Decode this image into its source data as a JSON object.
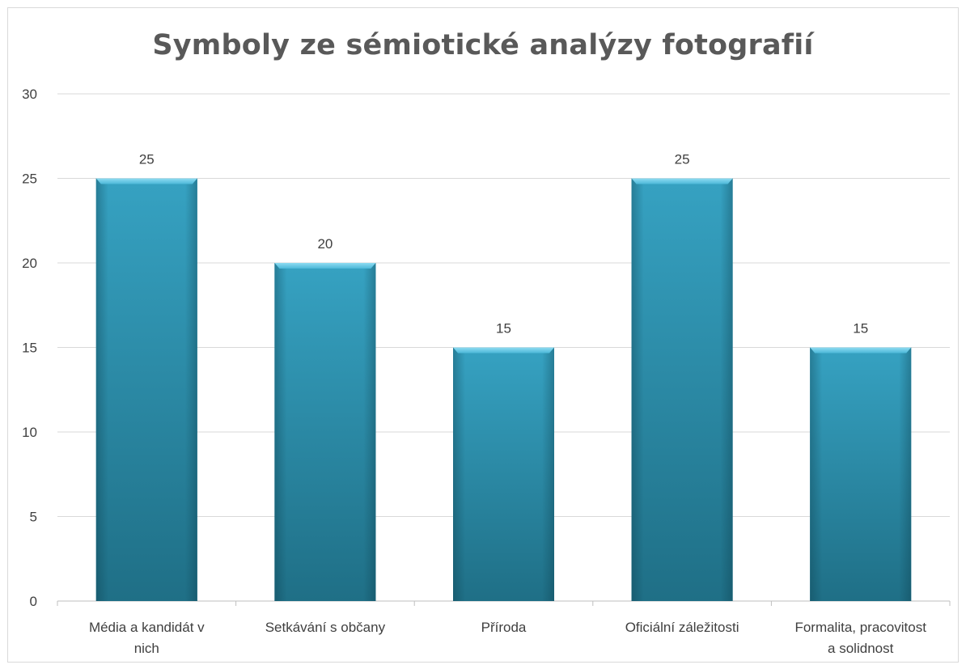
{
  "chart_data": {
    "type": "bar",
    "title": "Symboly ze sémiotické analýzy fotografií",
    "xlabel": "",
    "ylabel": "",
    "categories": [
      [
        "Média a kandidát v",
        "nich"
      ],
      [
        "Setkávání s občany"
      ],
      [
        "Příroda"
      ],
      [
        "Oficiální záležitosti"
      ],
      [
        "Formalita, pracovitost",
        "a solidnost"
      ]
    ],
    "values": [
      25,
      20,
      15,
      25,
      15
    ],
    "ylim": [
      0,
      30
    ],
    "yticks": [
      0,
      5,
      10,
      15,
      20,
      25,
      30
    ],
    "grid": true,
    "legend": "none",
    "bar_color": "#2a8fab",
    "data_labels": true
  }
}
